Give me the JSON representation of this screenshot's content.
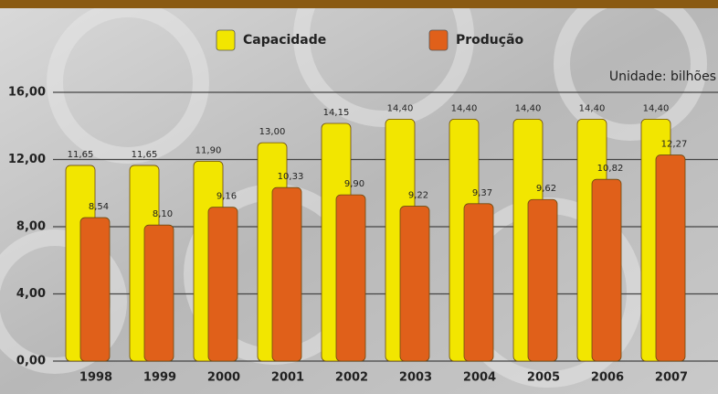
{
  "chart_data": {
    "type": "bar",
    "annotation": "Unidade: bilhões",
    "categories": [
      "1998",
      "1999",
      "2000",
      "2001",
      "2002",
      "2003",
      "2004",
      "2005",
      "2006",
      "2007"
    ],
    "series": [
      {
        "name": "Capacidade",
        "color": "#f2e600",
        "values": [
          11.65,
          11.65,
          11.9,
          13.0,
          14.15,
          14.4,
          14.4,
          14.4,
          14.4,
          14.4
        ],
        "value_labels": [
          "11,65",
          "11,65",
          "11,90",
          "13,00",
          "14,15",
          "14,40",
          "14,40",
          "14,40",
          "14,40",
          "14,40"
        ]
      },
      {
        "name": "Produção",
        "color": "#e0601a",
        "values": [
          8.54,
          8.1,
          9.16,
          10.33,
          9.9,
          9.22,
          9.37,
          9.62,
          10.82,
          12.27
        ],
        "value_labels": [
          "8,54",
          "8,10",
          "9,16",
          "10,33",
          "9,90",
          "9,22",
          "9,37",
          "9,62",
          "10,82",
          "12,27"
        ]
      }
    ],
    "ylim": [
      0,
      16
    ],
    "yticks": [
      {
        "value": 0,
        "label": "0,00"
      },
      {
        "value": 4,
        "label": "4,00"
      },
      {
        "value": 8,
        "label": "8,00"
      },
      {
        "value": 12,
        "label": "12,00"
      },
      {
        "value": 16,
        "label": "16,00"
      }
    ],
    "grid": true
  }
}
